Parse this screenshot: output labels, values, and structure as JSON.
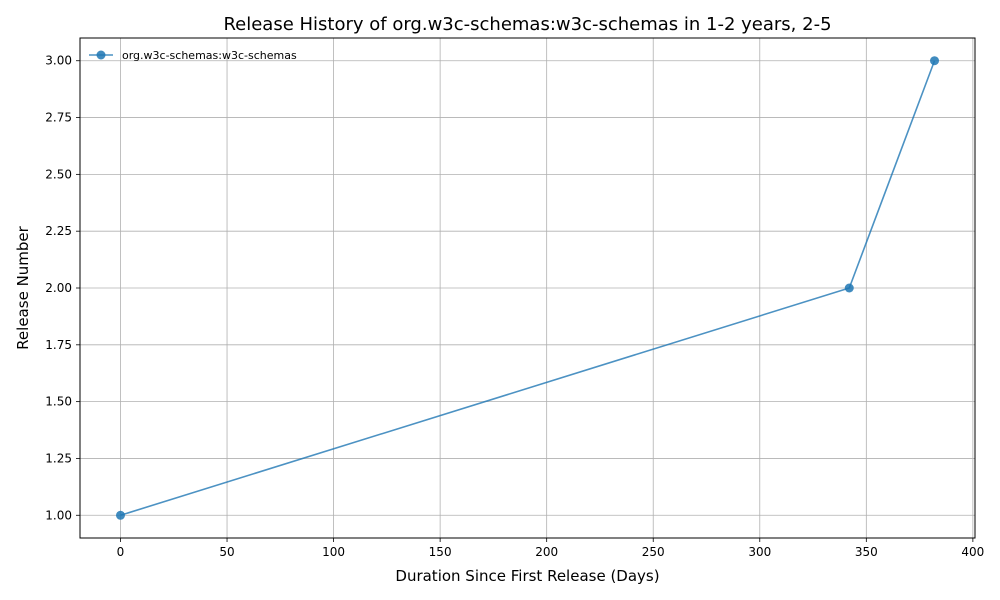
{
  "chart_data": {
    "type": "line",
    "title": "Release History of org.w3c-schemas:w3c-schemas in 1-2 years, 2-5",
    "xlabel": "Duration Since First Release (Days)",
    "ylabel": "Release Number",
    "xlim": [
      -19,
      401
    ],
    "ylim": [
      0.9,
      3.1
    ],
    "x_ticks": [
      0,
      50,
      100,
      150,
      200,
      250,
      300,
      350,
      400
    ],
    "y_ticks": [
      1.0,
      1.25,
      1.5,
      1.75,
      2.0,
      2.25,
      2.5,
      2.75,
      3.0
    ],
    "x_tick_labels": [
      "0",
      "50",
      "100",
      "150",
      "200",
      "250",
      "300",
      "350",
      "400"
    ],
    "y_tick_labels": [
      "1.00",
      "1.25",
      "1.50",
      "1.75",
      "2.00",
      "2.25",
      "2.50",
      "2.75",
      "3.00"
    ],
    "grid": true,
    "legend_position": "top-left",
    "series": [
      {
        "name": "org.w3c-schemas:w3c-schemas",
        "color": "#1f77b4",
        "x": [
          0,
          342,
          382
        ],
        "y": [
          1,
          2,
          3
        ]
      }
    ]
  }
}
